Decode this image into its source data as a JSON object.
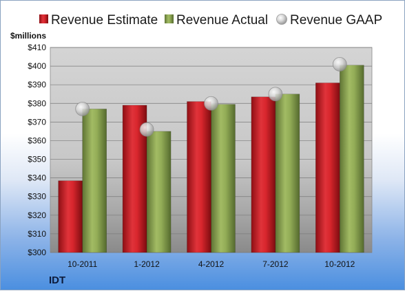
{
  "chart_data": {
    "type": "bar",
    "ticker": "IDT",
    "ylabel": "$millions",
    "ylim": [
      300,
      410
    ],
    "ytick_step": 10,
    "y_prefix": "$",
    "grid": true,
    "legend_position": "top",
    "categories": [
      "10-2011",
      "1-2012",
      "4-2012",
      "7-2012",
      "10-2012"
    ],
    "series": [
      {
        "name": "Revenue Estimate",
        "kind": "bar",
        "color": "#cc1f26",
        "values": [
          338.5,
          379,
          381,
          383.5,
          391
        ]
      },
      {
        "name": "Revenue Actual",
        "kind": "bar",
        "color": "#8ba352",
        "values": [
          377,
          365,
          379.5,
          385,
          400.5
        ]
      },
      {
        "name": "Revenue GAAP",
        "kind": "marker",
        "color": "#c7c7c7",
        "values": [
          377,
          366,
          380,
          385,
          401
        ]
      }
    ]
  }
}
